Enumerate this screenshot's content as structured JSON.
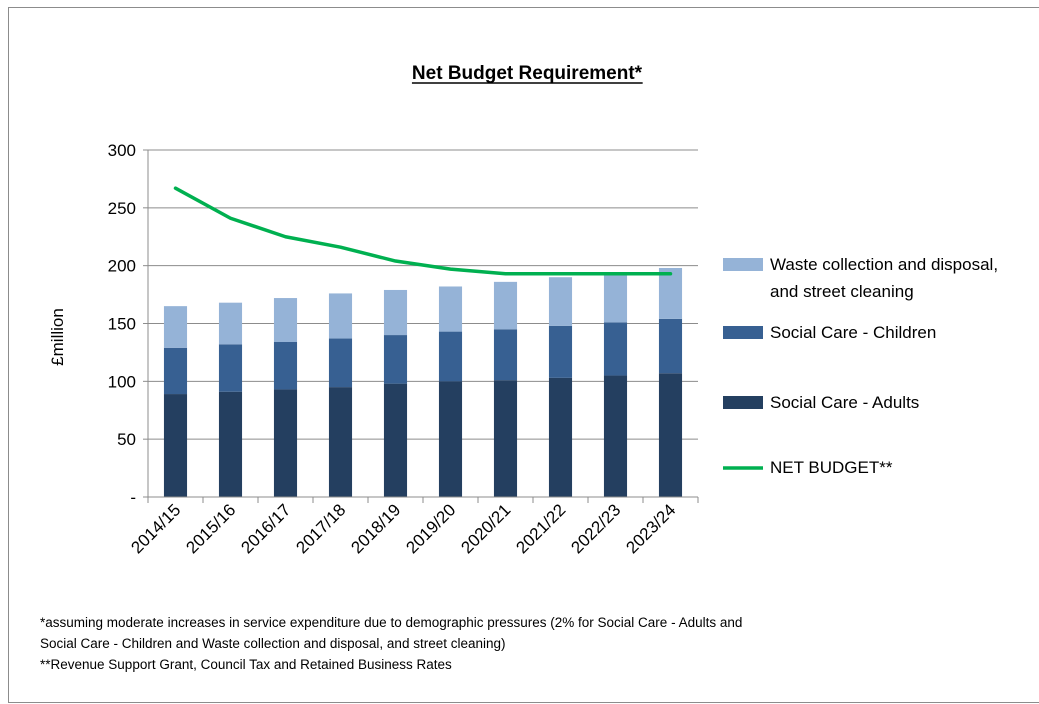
{
  "chart_data": {
    "type": "bar",
    "stacked": true,
    "title": "Net Budget Requirement*",
    "ylabel": "£million",
    "xlabel": "",
    "ylim": [
      0,
      300
    ],
    "yticks": [
      0,
      50,
      100,
      150,
      200,
      250,
      300
    ],
    "ytick_labels": [
      "-",
      "50",
      "100",
      "150",
      "200",
      "250",
      "300"
    ],
    "categories": [
      "2014/15",
      "2015/16",
      "2016/17",
      "2017/18",
      "2018/19",
      "2019/20",
      "2020/21",
      "2021/22",
      "2022/23",
      "2023/24"
    ],
    "series": [
      {
        "name": "Social Care - Adults",
        "type": "bar",
        "color": "#243F60",
        "values": [
          89,
          91,
          93,
          95,
          98,
          100,
          101,
          103,
          105,
          107
        ]
      },
      {
        "name": "Social Care - Children",
        "type": "bar",
        "color": "#376092",
        "values": [
          40,
          41,
          41,
          42,
          42,
          43,
          44,
          45,
          46,
          47
        ]
      },
      {
        "name": "Waste collection and disposal, and street cleaning",
        "type": "bar",
        "color": "#95B3D7",
        "values": [
          36,
          36,
          38,
          39,
          39,
          39,
          41,
          42,
          42,
          44
        ]
      },
      {
        "name": "NET BUDGET**",
        "type": "line",
        "color": "#00B050",
        "values": [
          267,
          241,
          225,
          216,
          204,
          197,
          193,
          193,
          193,
          193
        ]
      }
    ],
    "legend": {
      "position": "right",
      "items": [
        {
          "lines": [
            "Waste collection and disposal,",
            "and street cleaning"
          ],
          "color": "#95B3D7",
          "kind": "box"
        },
        {
          "lines": [
            "Social Care - Children"
          ],
          "color": "#376092",
          "kind": "box"
        },
        {
          "lines": [
            "Social Care - Adults"
          ],
          "color": "#243F60",
          "kind": "box"
        },
        {
          "lines": [
            "NET BUDGET**"
          ],
          "color": "#00B050",
          "kind": "line"
        }
      ]
    },
    "grid": true
  },
  "footnotes": {
    "line1": "*assuming moderate increases in service expenditure due to demographic pressures (2% for Social Care - Adults and",
    "line2": "Social Care - Children and Waste collection and disposal, and street cleaning)",
    "line3": "**Revenue Support Grant, Council Tax and Retained Business Rates"
  }
}
